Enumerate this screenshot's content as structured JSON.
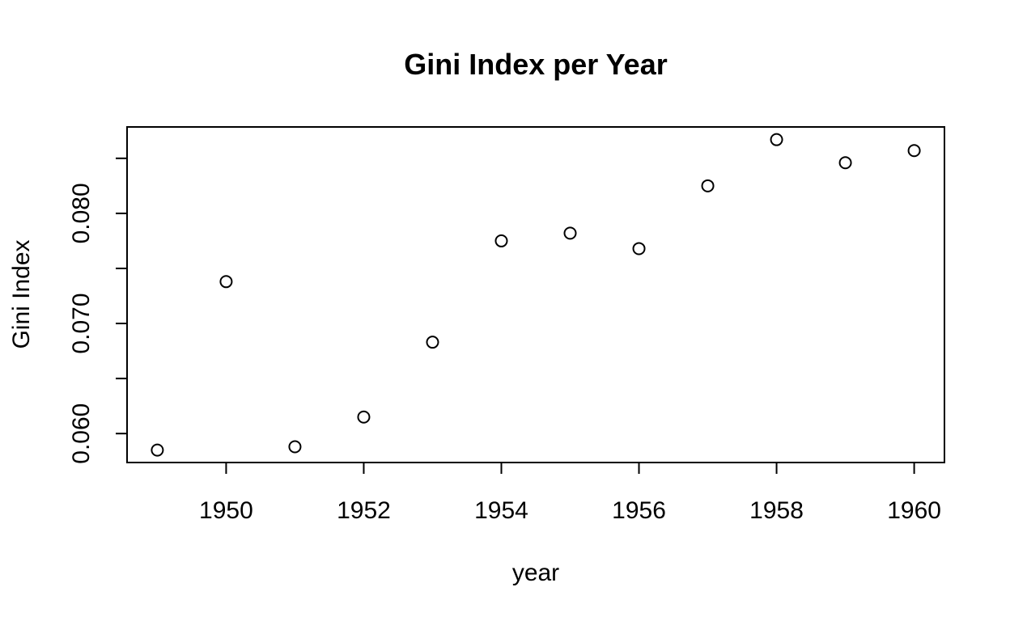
{
  "chart_data": {
    "type": "scatter",
    "title": "Gini Index per Year",
    "xlabel": "year",
    "ylabel": "Gini Index",
    "x": [
      1949,
      1950,
      1951,
      1952,
      1953,
      1954,
      1955,
      1956,
      1957,
      1958,
      1959,
      1960
    ],
    "y": [
      0.0585,
      0.0738,
      0.0588,
      0.0615,
      0.0683,
      0.0775,
      0.0782,
      0.0768,
      0.0825,
      0.0867,
      0.0846,
      0.0857
    ],
    "xlim": [
      1948.56,
      1960.44
    ],
    "ylim": [
      0.05737,
      0.08785
    ],
    "x_ticks": [
      1950,
      1952,
      1954,
      1956,
      1958,
      1960
    ],
    "x_tick_labels": [
      "1950",
      "1952",
      "1954",
      "1956",
      "1958",
      "1960"
    ],
    "y_ticks": [
      0.06,
      0.065,
      0.07,
      0.075,
      0.08,
      0.085
    ],
    "y_tick_labels": [
      "0.060",
      "",
      "0.070",
      "",
      "0.080",
      ""
    ],
    "grid": false,
    "marker": "open-circle",
    "colors": {
      "points": "#000000",
      "axes": "#000000",
      "background": "#ffffff"
    }
  }
}
